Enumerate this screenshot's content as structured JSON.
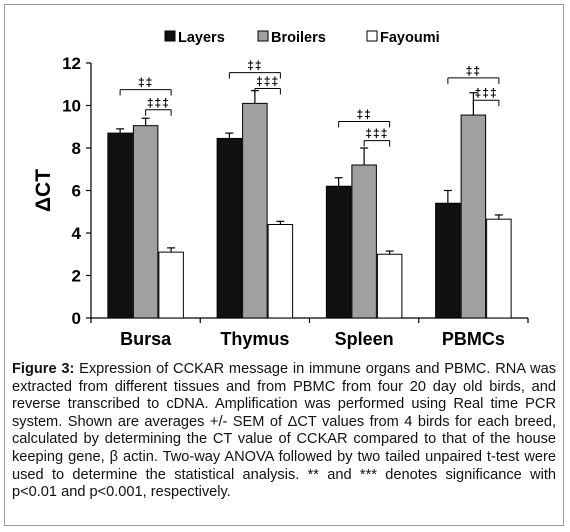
{
  "chart_data": {
    "type": "bar",
    "ylabel": "ΔCT",
    "ylim": [
      0,
      12
    ],
    "yticks": [
      "0",
      "2",
      "4",
      "6",
      "8",
      "10",
      "12"
    ],
    "categories": [
      "Bursa",
      "Thymus",
      "Spleen",
      "PBMCs"
    ],
    "grid": false,
    "legend_position": "top",
    "series": [
      {
        "name": "Layers",
        "fill": "#111111",
        "values": [
          8.7,
          8.45,
          6.2,
          5.4
        ],
        "errors": [
          0.2,
          0.25,
          0.4,
          0.6
        ]
      },
      {
        "name": "Broilers",
        "fill": "#a0a0a0",
        "values": [
          9.05,
          10.1,
          7.2,
          9.55
        ],
        "errors": [
          0.35,
          0.6,
          0.8,
          1.05
        ]
      },
      {
        "name": "Fayoumi",
        "fill": "#ffffff",
        "values": [
          3.1,
          4.4,
          3.0,
          4.65
        ],
        "errors": [
          0.2,
          0.15,
          0.15,
          0.2
        ]
      }
    ],
    "annotations": [
      {
        "category": "Bursa",
        "symbol": "‡‡",
        "from": "Layers",
        "to": "Fayoumi",
        "level": 10.75
      },
      {
        "category": "Bursa",
        "symbol": "‡‡‡",
        "from": "Broilers",
        "to": "Fayoumi",
        "level": 9.8
      },
      {
        "category": "Thymus",
        "symbol": "‡‡",
        "from": "Layers",
        "to": "Fayoumi",
        "level": 11.55
      },
      {
        "category": "Thymus",
        "symbol": "‡‡‡",
        "from": "Broilers",
        "to": "Fayoumi",
        "level": 10.8
      },
      {
        "category": "Spleen",
        "symbol": "‡‡",
        "from": "Layers",
        "to": "Fayoumi",
        "level": 9.25
      },
      {
        "category": "Spleen",
        "symbol": "‡‡‡",
        "from": "Broilers",
        "to": "Fayoumi",
        "level": 8.35
      },
      {
        "category": "PBMCs",
        "symbol": "‡‡",
        "from": "Layers",
        "to": "Fayoumi",
        "level": 11.3
      },
      {
        "category": "PBMCs",
        "symbol": "‡‡‡",
        "from": "Broilers",
        "to": "Fayoumi",
        "level": 10.25
      }
    ]
  },
  "caption": {
    "label": "Figure 3:",
    "text": " Expression of CCKAR message in immune organs and PBMC. RNA was extracted from different tissues and from PBMC from four 20 day old birds, and reverse transcribed to cDNA. Amplification was performed using Real time PCR system. Shown are averages +/- SEM of ΔCT values from 4 birds for each breed, calculated by determining the CT value of CCKAR compared to that of the house keeping gene, β actin. Two-way ANOVA followed by two tailed unpaired t-test were used to determine the statistical analysis. ** and *** denotes significance with p<0.01 and p<0.001, respectively."
  }
}
